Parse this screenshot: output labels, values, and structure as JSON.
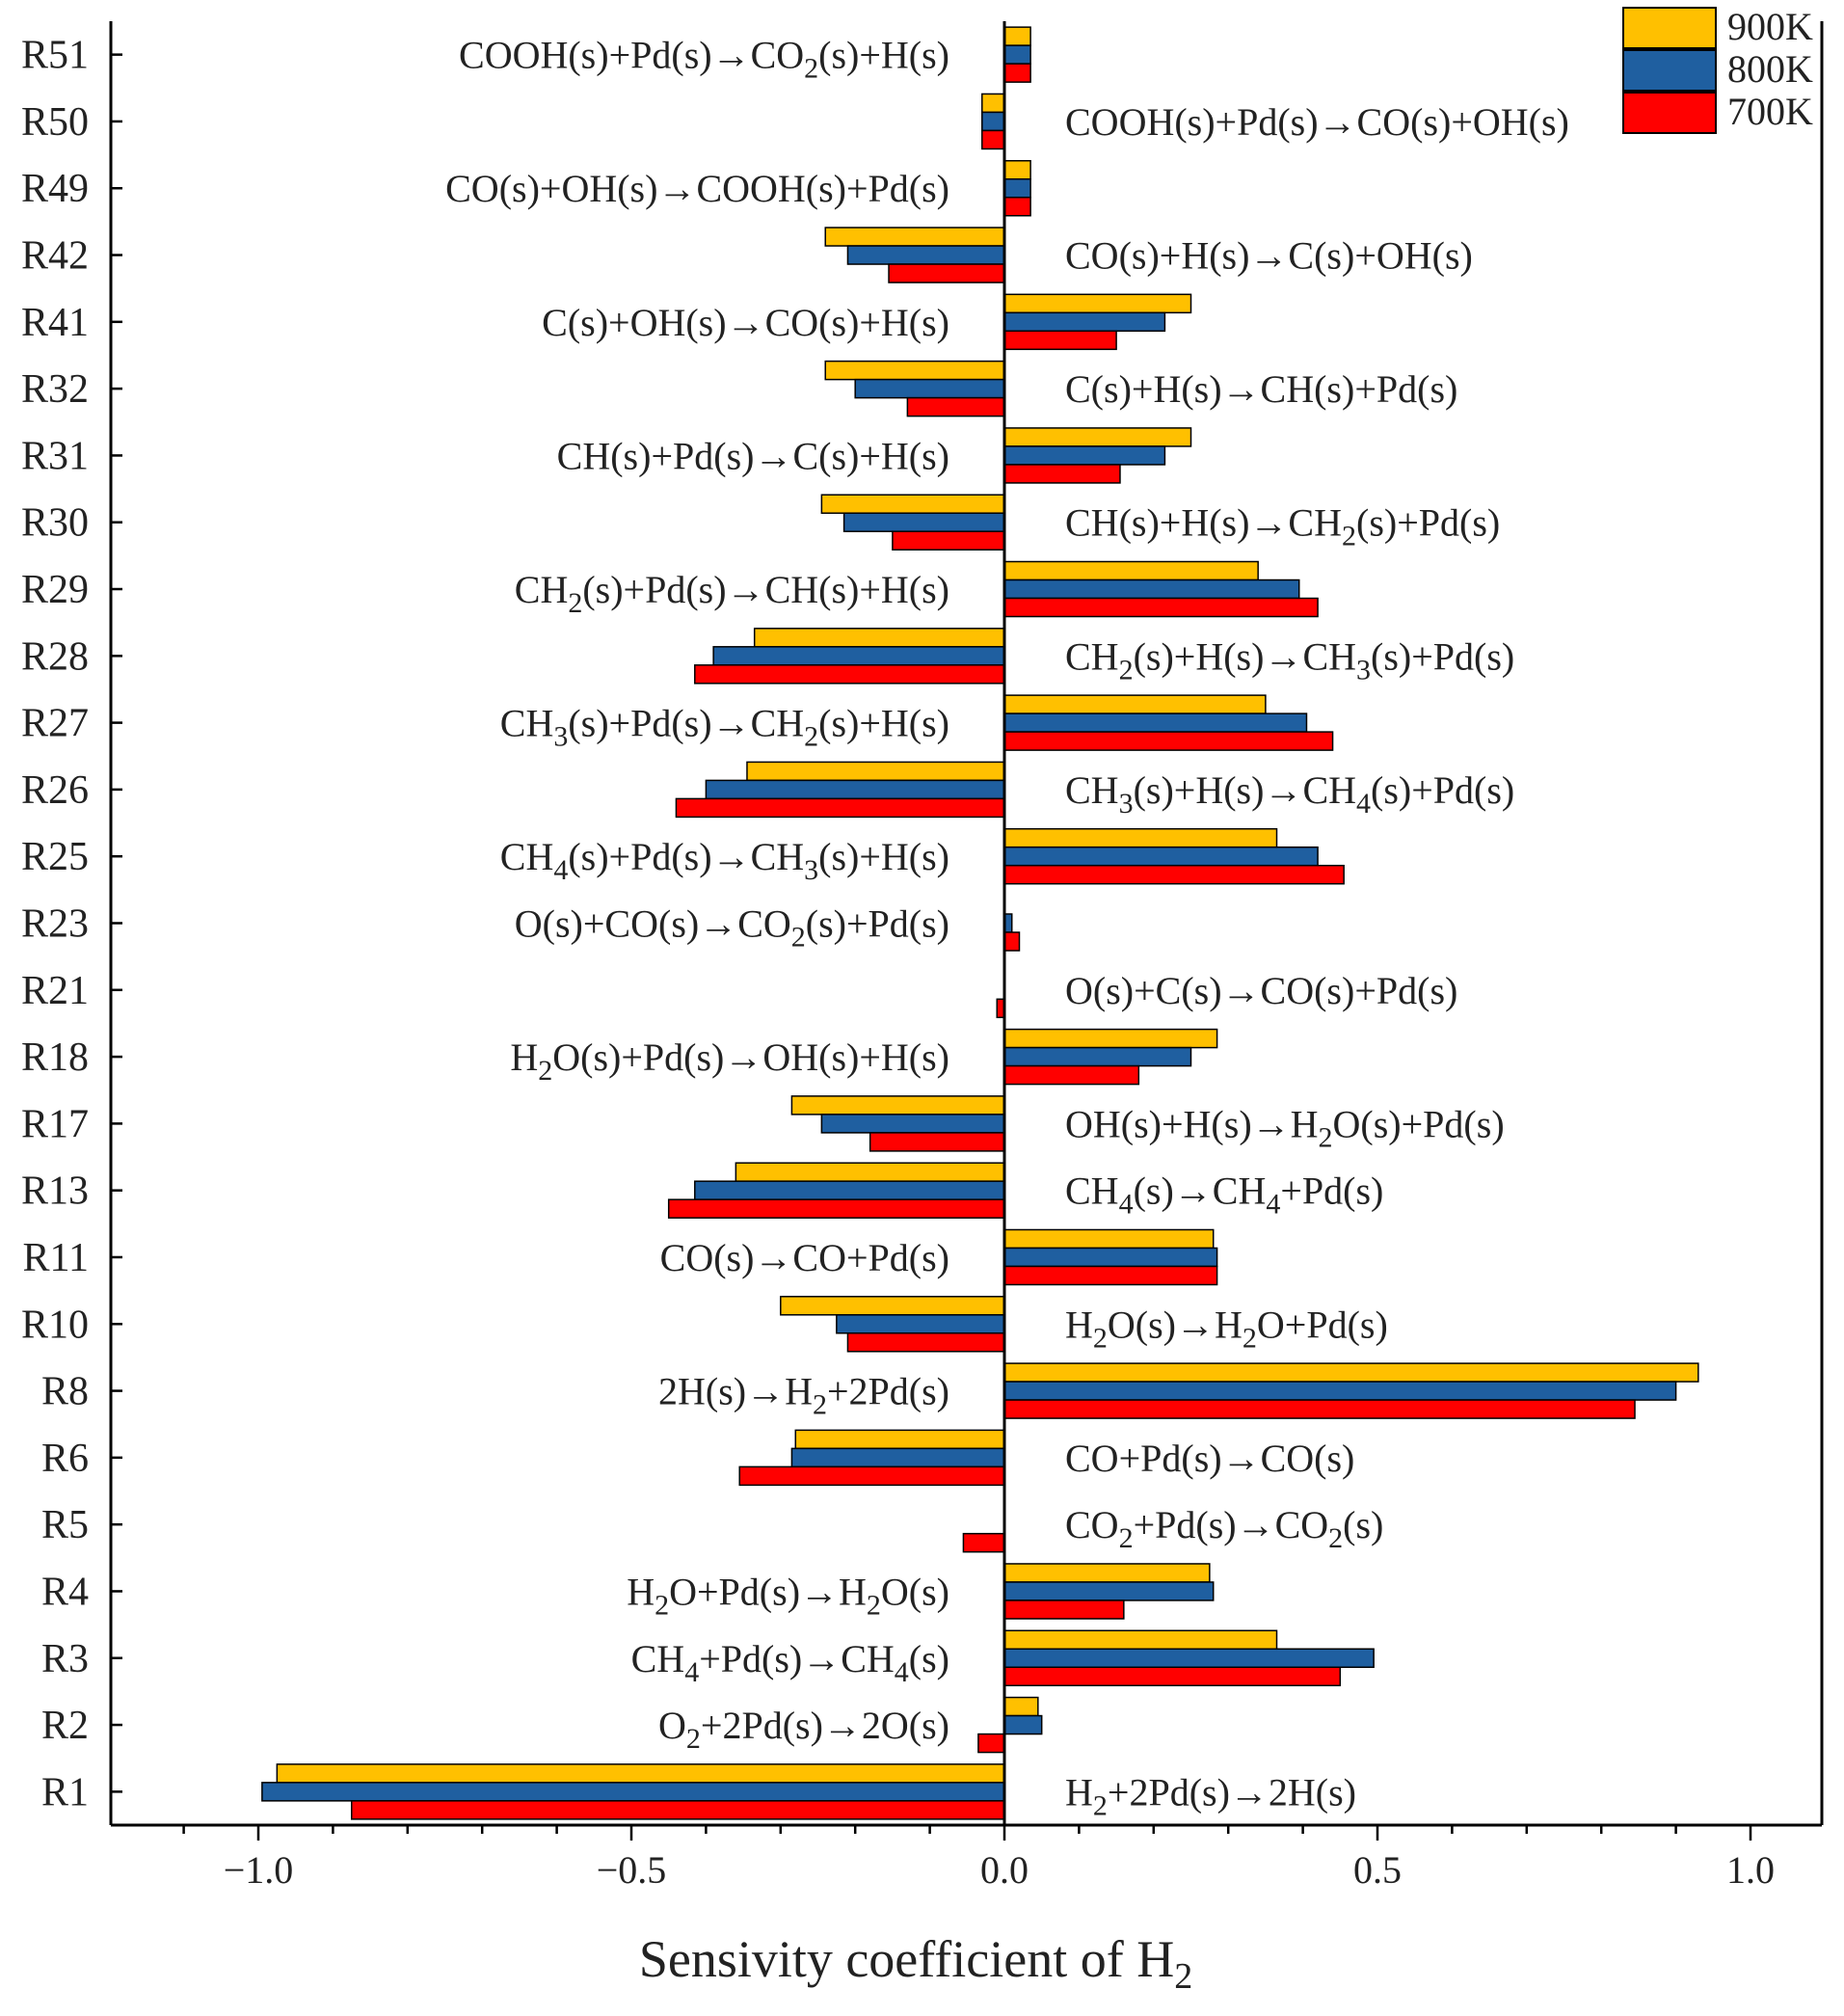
{
  "chart_data": {
    "type": "bar",
    "orientation": "horizontal",
    "xlabel": "Sensivity coefficient of H",
    "xlabel_subscript": "2",
    "xlim": [
      -1.2,
      1.1
    ],
    "xticks": [
      -1.0,
      -0.5,
      0.0,
      0.5,
      1.0
    ],
    "xtick_labels": [
      "−1.0",
      "−0.5",
      "0.0",
      "0.5",
      "1.0"
    ],
    "legend_position": "top-right",
    "categories": [
      "R51",
      "R50",
      "R49",
      "R42",
      "R41",
      "R32",
      "R31",
      "R30",
      "R29",
      "R28",
      "R27",
      "R26",
      "R25",
      "R23",
      "R21",
      "R18",
      "R17",
      "R13",
      "R11",
      "R10",
      "R8",
      "R6",
      "R5",
      "R4",
      "R3",
      "R2",
      "R1"
    ],
    "reactions": [
      {
        "side": "left",
        "parts": [
          {
            "t": "COOH(s)+Pd(s)→CO"
          },
          {
            "t": "2",
            "sub": true
          },
          {
            "t": "(s)+H(s)"
          }
        ]
      },
      {
        "side": "right",
        "parts": [
          {
            "t": "COOH(s)+Pd(s)→CO(s)+OH(s)"
          }
        ]
      },
      {
        "side": "left",
        "parts": [
          {
            "t": "CO(s)+OH(s)→COOH(s)+Pd(s)"
          }
        ]
      },
      {
        "side": "right",
        "parts": [
          {
            "t": "CO(s)+H(s)→C(s)+OH(s)"
          }
        ]
      },
      {
        "side": "left",
        "parts": [
          {
            "t": "C(s)+OH(s)→CO(s)+H(s)"
          }
        ]
      },
      {
        "side": "right",
        "parts": [
          {
            "t": "C(s)+H(s)→CH(s)+Pd(s)"
          }
        ]
      },
      {
        "side": "left",
        "parts": [
          {
            "t": "CH(s)+Pd(s)→C(s)+H(s)"
          }
        ]
      },
      {
        "side": "right",
        "parts": [
          {
            "t": "CH(s)+H(s)→CH"
          },
          {
            "t": "2",
            "sub": true
          },
          {
            "t": "(s)+Pd(s)"
          }
        ]
      },
      {
        "side": "left",
        "parts": [
          {
            "t": "CH"
          },
          {
            "t": "2",
            "sub": true
          },
          {
            "t": "(s)+Pd(s)→CH(s)+H(s)"
          }
        ]
      },
      {
        "side": "right",
        "parts": [
          {
            "t": "CH"
          },
          {
            "t": "2",
            "sub": true
          },
          {
            "t": "(s)+H(s)→CH"
          },
          {
            "t": "3",
            "sub": true
          },
          {
            "t": "(s)+Pd(s)"
          }
        ]
      },
      {
        "side": "left",
        "parts": [
          {
            "t": "CH"
          },
          {
            "t": "3",
            "sub": true
          },
          {
            "t": "(s)+Pd(s)→CH"
          },
          {
            "t": "2",
            "sub": true
          },
          {
            "t": "(s)+H(s)"
          }
        ]
      },
      {
        "side": "right",
        "parts": [
          {
            "t": "CH"
          },
          {
            "t": "3",
            "sub": true
          },
          {
            "t": "(s)+H(s)→CH"
          },
          {
            "t": "4",
            "sub": true
          },
          {
            "t": "(s)+Pd(s)"
          }
        ]
      },
      {
        "side": "left",
        "parts": [
          {
            "t": "CH"
          },
          {
            "t": "4",
            "sub": true
          },
          {
            "t": "(s)+Pd(s)→CH"
          },
          {
            "t": "3",
            "sub": true
          },
          {
            "t": "(s)+H(s)"
          }
        ]
      },
      {
        "side": "left",
        "parts": [
          {
            "t": "O(s)+CO(s)→CO"
          },
          {
            "t": "2",
            "sub": true
          },
          {
            "t": "(s)+Pd(s)"
          }
        ]
      },
      {
        "side": "right",
        "parts": [
          {
            "t": "O(s)+C(s)→CO(s)+Pd(s)"
          }
        ]
      },
      {
        "side": "left",
        "parts": [
          {
            "t": "H"
          },
          {
            "t": "2",
            "sub": true
          },
          {
            "t": "O(s)+Pd(s)→OH(s)+H(s)"
          }
        ]
      },
      {
        "side": "right",
        "parts": [
          {
            "t": "OH(s)+H(s)→H"
          },
          {
            "t": "2",
            "sub": true
          },
          {
            "t": "O(s)+Pd(s)"
          }
        ]
      },
      {
        "side": "right",
        "parts": [
          {
            "t": "CH"
          },
          {
            "t": "4",
            "sub": true
          },
          {
            "t": "(s)→CH"
          },
          {
            "t": "4",
            "sub": true
          },
          {
            "t": "+Pd(s)"
          }
        ]
      },
      {
        "side": "left",
        "parts": [
          {
            "t": "CO(s)→CO+Pd(s)"
          }
        ]
      },
      {
        "side": "right",
        "parts": [
          {
            "t": "H"
          },
          {
            "t": "2",
            "sub": true
          },
          {
            "t": "O(s)→H"
          },
          {
            "t": "2",
            "sub": true
          },
          {
            "t": "O+Pd(s)"
          }
        ]
      },
      {
        "side": "left",
        "parts": [
          {
            "t": "2H(s)→H"
          },
          {
            "t": "2",
            "sub": true
          },
          {
            "t": "+2Pd(s)"
          }
        ]
      },
      {
        "side": "right",
        "parts": [
          {
            "t": "CO+Pd(s)→CO(s)"
          }
        ]
      },
      {
        "side": "right",
        "parts": [
          {
            "t": "CO"
          },
          {
            "t": "2",
            "sub": true
          },
          {
            "t": "+Pd(s)→CO"
          },
          {
            "t": "2",
            "sub": true
          },
          {
            "t": "(s)"
          }
        ]
      },
      {
        "side": "left",
        "parts": [
          {
            "t": "H"
          },
          {
            "t": "2",
            "sub": true
          },
          {
            "t": "O+Pd(s)→H"
          },
          {
            "t": "2",
            "sub": true
          },
          {
            "t": "O(s)"
          }
        ]
      },
      {
        "side": "left",
        "parts": [
          {
            "t": "CH"
          },
          {
            "t": "4",
            "sub": true
          },
          {
            "t": "+Pd(s)→CH"
          },
          {
            "t": "4",
            "sub": true
          },
          {
            "t": "(s)"
          }
        ]
      },
      {
        "side": "left",
        "parts": [
          {
            "t": "O"
          },
          {
            "t": "2",
            "sub": true
          },
          {
            "t": "+2Pd(s)→2O(s)"
          }
        ]
      },
      {
        "side": "right",
        "parts": [
          {
            "t": "H"
          },
          {
            "t": "2",
            "sub": true
          },
          {
            "t": "+2Pd(s)→2H(s)"
          }
        ]
      }
    ],
    "series": [
      {
        "name": "900K",
        "color": "#FFC000",
        "values": [
          0.035,
          -0.03,
          0.035,
          -0.24,
          0.25,
          -0.24,
          0.25,
          -0.245,
          0.34,
          -0.335,
          0.35,
          -0.345,
          0.365,
          0.0,
          0.0,
          0.285,
          -0.285,
          -0.36,
          0.28,
          -0.3,
          0.93,
          -0.28,
          0.0,
          0.275,
          0.365,
          0.045,
          -0.975
        ]
      },
      {
        "name": "800K",
        "color": "#1F5FA0",
        "values": [
          0.035,
          -0.03,
          0.035,
          -0.21,
          0.215,
          -0.2,
          0.215,
          -0.215,
          0.395,
          -0.39,
          0.405,
          -0.4,
          0.42,
          0.01,
          0.0,
          0.25,
          -0.245,
          -0.415,
          0.285,
          -0.225,
          0.9,
          -0.285,
          0.0,
          0.28,
          0.495,
          0.05,
          -0.995
        ]
      },
      {
        "name": "700K",
        "color": "#FF0000",
        "values": [
          0.035,
          -0.03,
          0.035,
          -0.155,
          0.15,
          -0.13,
          0.155,
          -0.15,
          0.42,
          -0.415,
          0.44,
          -0.44,
          0.455,
          0.02,
          -0.01,
          0.18,
          -0.18,
          -0.45,
          0.285,
          -0.21,
          0.845,
          -0.355,
          -0.055,
          0.16,
          0.45,
          -0.035,
          -0.875
        ]
      }
    ]
  }
}
